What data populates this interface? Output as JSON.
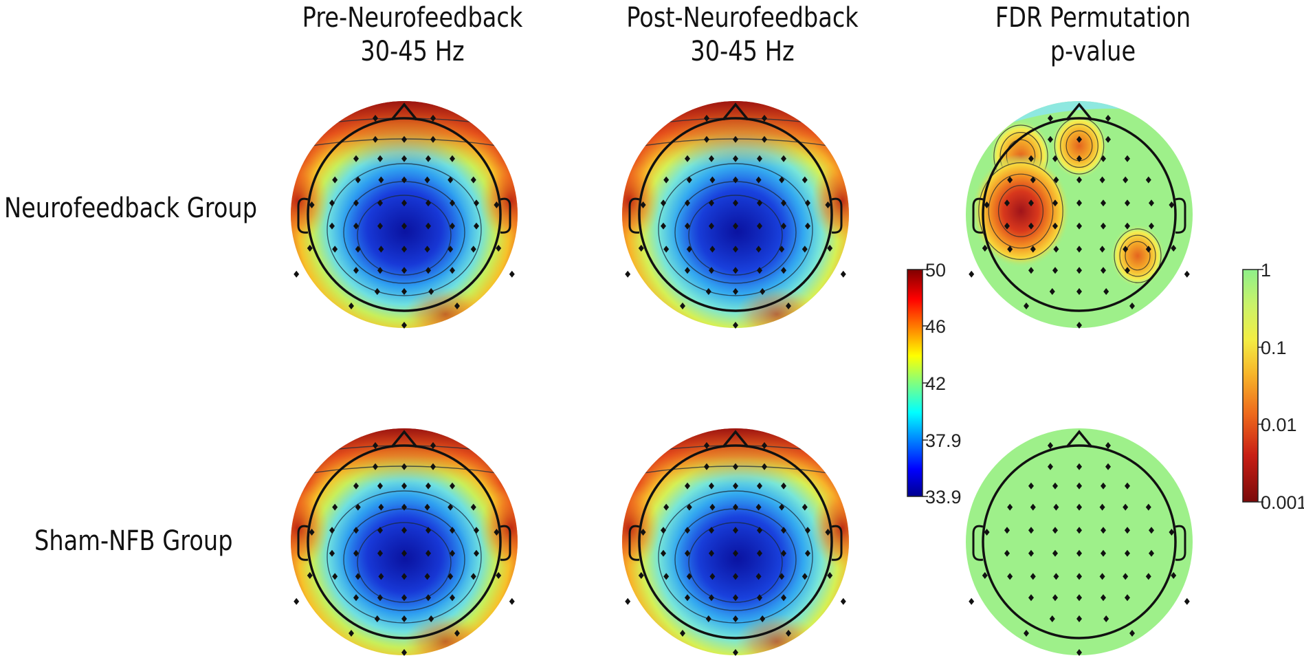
{
  "columns": [
    {
      "title_line1": "Pre-Neurofeedback",
      "title_line2": "30-45 Hz"
    },
    {
      "title_line1": "Post-Neurofeedback",
      "title_line2": "30-45 Hz"
    },
    {
      "title_line1": "FDR Permutation",
      "title_line2": "p-value"
    }
  ],
  "rows": [
    {
      "label": "Neurofeedback Group"
    },
    {
      "label": "Sham-NFB Group"
    }
  ],
  "colorbar_power": {
    "ticks": [
      "50",
      "46",
      "42",
      "37.9",
      "33.9"
    ],
    "colormap": "jet",
    "min": 33.9,
    "max": 50
  },
  "colorbar_pvalue": {
    "ticks": [
      "1",
      "0.1",
      "0.01",
      "0.001"
    ],
    "colormap": "autumn-to-green",
    "scale": "log"
  },
  "maps": [
    {
      "id": "nfb-pre",
      "type": "power"
    },
    {
      "id": "nfb-post",
      "type": "power"
    },
    {
      "id": "nfb-fdr",
      "type": "pvalue",
      "significant_clusters": [
        "left-frontal",
        "frontal-midline",
        "left-temporal",
        "right-parietal"
      ]
    },
    {
      "id": "sham-pre",
      "type": "power"
    },
    {
      "id": "sham-post",
      "type": "power"
    },
    {
      "id": "sham-fdr",
      "type": "pvalue",
      "significant_clusters": []
    }
  ]
}
